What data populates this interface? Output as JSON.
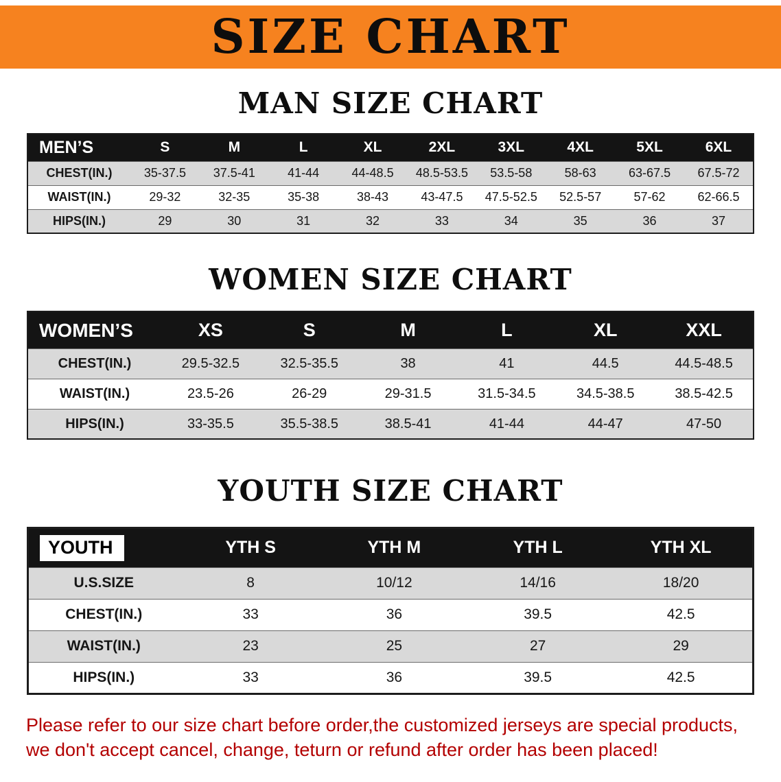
{
  "colors": {
    "banner_orange": "#f6821f",
    "table_header_black": "#141414",
    "row_gray": "#d9d9d9",
    "disclaimer_red": "#b30000"
  },
  "banner": {
    "title": "SIZE CHART"
  },
  "sections": {
    "men": {
      "heading": "MAN SIZE CHART"
    },
    "women": {
      "heading": "WOMEN SIZE CHART"
    },
    "youth": {
      "heading": "YOUTH SIZE CHART"
    }
  },
  "tables": {
    "men": {
      "header": [
        "MEN’S",
        "S",
        "M",
        "L",
        "XL",
        "2XL",
        "3XL",
        "4XL",
        "5XL",
        "6XL"
      ],
      "rows": [
        [
          "CHEST(IN.)",
          "35-37.5",
          "37.5-41",
          "41-44",
          "44-48.5",
          "48.5-53.5",
          "53.5-58",
          "58-63",
          "63-67.5",
          "67.5-72"
        ],
        [
          "WAIST(IN.)",
          "29-32",
          "32-35",
          "35-38",
          "38-43",
          "43-47.5",
          "47.5-52.5",
          "52.5-57",
          "57-62",
          "62-66.5"
        ],
        [
          "HIPS(IN.)",
          "29",
          "30",
          "31",
          "32",
          "33",
          "34",
          "35",
          "36",
          "37"
        ]
      ]
    },
    "women": {
      "header": [
        "WOMEN’S",
        "XS",
        "S",
        "M",
        "L",
        "XL",
        "XXL"
      ],
      "rows": [
        [
          "CHEST(IN.)",
          "29.5-32.5",
          "32.5-35.5",
          "38",
          "41",
          "44.5",
          "44.5-48.5"
        ],
        [
          "WAIST(IN.)",
          "23.5-26",
          "26-29",
          "29-31.5",
          "31.5-34.5",
          "34.5-38.5",
          "38.5-42.5"
        ],
        [
          "HIPS(IN.)",
          "33-35.5",
          "35.5-38.5",
          "38.5-41",
          "41-44",
          "44-47",
          "47-50"
        ]
      ]
    },
    "youth": {
      "label_chip": true,
      "header": [
        "YOUTH",
        "YTH S",
        "YTH M",
        "YTH L",
        "YTH XL"
      ],
      "rows": [
        [
          "U.S.SIZE",
          "8",
          "10/12",
          "14/16",
          "18/20"
        ],
        [
          "CHEST(IN.)",
          "33",
          "36",
          "39.5",
          "42.5"
        ],
        [
          "WAIST(IN.)",
          "23",
          "25",
          "27",
          "29"
        ],
        [
          "HIPS(IN.)",
          "33",
          "36",
          "39.5",
          "42.5"
        ]
      ]
    }
  },
  "footer": {
    "line1": "Please refer to our size chart before order,the customized jerseys are special products,",
    "line2": "we don't accept cancel, change, teturn or refund after order has been placed!"
  }
}
